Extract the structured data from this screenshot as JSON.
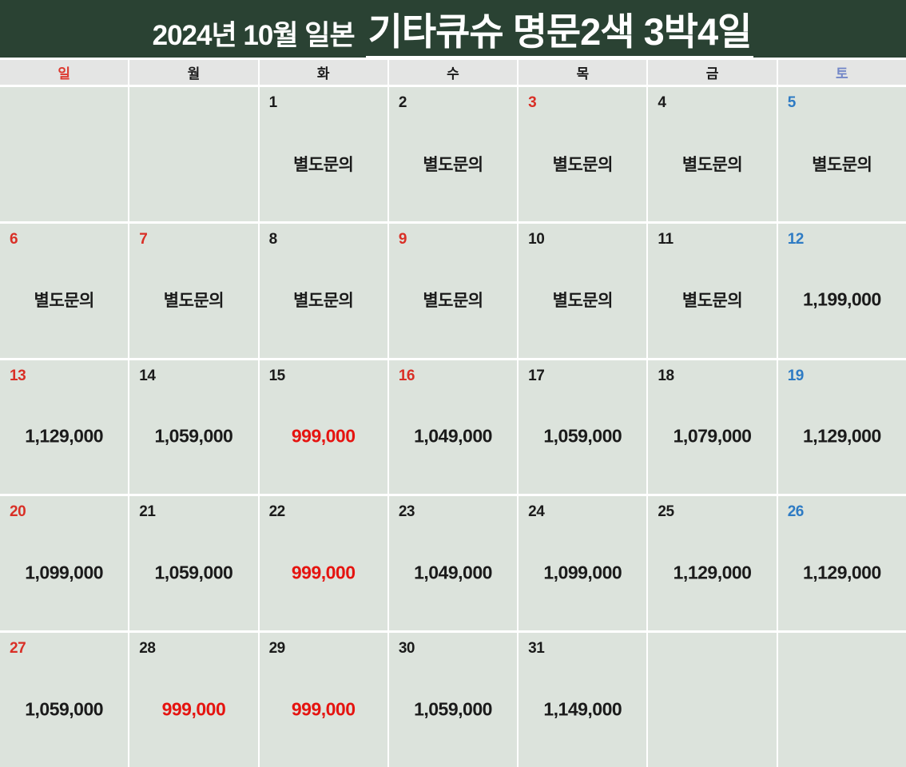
{
  "title": {
    "prefix": "2024년 10월 일본",
    "main": "기타큐슈 명문2색 3박4일"
  },
  "colors": {
    "banner_green": "#2a4233",
    "cell_background": "#dce3dc",
    "weekday_header_background": "#e4e5e4",
    "grid_line_white": "#ffffff",
    "day_red": "#d92f26",
    "day_blue": "#2e7bc4",
    "day_black": "#1b1b1b",
    "price_red": "#e51410",
    "price_black": "#1b1b1b",
    "sunday_header_red": "#dd382e",
    "saturday_header_blue": "#7488c8",
    "weekday_header_black": "#1b1b1b",
    "title_text": "#ffffff"
  },
  "weekdays": [
    {
      "label": "일",
      "color": "#dd382e"
    },
    {
      "label": "월",
      "color": "#1b1b1b"
    },
    {
      "label": "화",
      "color": "#1b1b1b"
    },
    {
      "label": "수",
      "color": "#1b1b1b"
    },
    {
      "label": "목",
      "color": "#1b1b1b"
    },
    {
      "label": "금",
      "color": "#1b1b1b"
    },
    {
      "label": "토",
      "color": "#7488c8"
    }
  ],
  "calendar": {
    "month": "2024-10",
    "inquiry_text": "별도문의",
    "cells": [
      {
        "day": "",
        "value": ""
      },
      {
        "day": "",
        "value": ""
      },
      {
        "day": "1",
        "day_color": "#1b1b1b",
        "type": "inquiry",
        "value": "별도문의",
        "value_color": "#1b1b1b"
      },
      {
        "day": "2",
        "day_color": "#1b1b1b",
        "type": "inquiry",
        "value": "별도문의",
        "value_color": "#1b1b1b"
      },
      {
        "day": "3",
        "day_color": "#d92f26",
        "type": "inquiry",
        "value": "별도문의",
        "value_color": "#1b1b1b"
      },
      {
        "day": "4",
        "day_color": "#1b1b1b",
        "type": "inquiry",
        "value": "별도문의",
        "value_color": "#1b1b1b"
      },
      {
        "day": "5",
        "day_color": "#2e7bc4",
        "type": "inquiry",
        "value": "별도문의",
        "value_color": "#1b1b1b"
      },
      {
        "day": "6",
        "day_color": "#d92f26",
        "type": "inquiry",
        "value": "별도문의",
        "value_color": "#1b1b1b"
      },
      {
        "day": "7",
        "day_color": "#d92f26",
        "type": "inquiry",
        "value": "별도문의",
        "value_color": "#1b1b1b"
      },
      {
        "day": "8",
        "day_color": "#1b1b1b",
        "type": "inquiry",
        "value": "별도문의",
        "value_color": "#1b1b1b"
      },
      {
        "day": "9",
        "day_color": "#d92f26",
        "type": "inquiry",
        "value": "별도문의",
        "value_color": "#1b1b1b"
      },
      {
        "day": "10",
        "day_color": "#1b1b1b",
        "type": "inquiry",
        "value": "별도문의",
        "value_color": "#1b1b1b"
      },
      {
        "day": "11",
        "day_color": "#1b1b1b",
        "type": "inquiry",
        "value": "별도문의",
        "value_color": "#1b1b1b"
      },
      {
        "day": "12",
        "day_color": "#2e7bc4",
        "type": "price",
        "value": "1,199,000",
        "value_color": "#1b1b1b"
      },
      {
        "day": "13",
        "day_color": "#d92f26",
        "type": "price",
        "value": "1,129,000",
        "value_color": "#1b1b1b"
      },
      {
        "day": "14",
        "day_color": "#1b1b1b",
        "type": "price",
        "value": "1,059,000",
        "value_color": "#1b1b1b"
      },
      {
        "day": "15",
        "day_color": "#1b1b1b",
        "type": "price",
        "value": "999,000",
        "value_color": "#e51410"
      },
      {
        "day": "16",
        "day_color": "#d92f26",
        "type": "price",
        "value": "1,049,000",
        "value_color": "#1b1b1b"
      },
      {
        "day": "17",
        "day_color": "#1b1b1b",
        "type": "price",
        "value": "1,059,000",
        "value_color": "#1b1b1b"
      },
      {
        "day": "18",
        "day_color": "#1b1b1b",
        "type": "price",
        "value": "1,079,000",
        "value_color": "#1b1b1b"
      },
      {
        "day": "19",
        "day_color": "#2e7bc4",
        "type": "price",
        "value": "1,129,000",
        "value_color": "#1b1b1b"
      },
      {
        "day": "20",
        "day_color": "#d92f26",
        "type": "price",
        "value": "1,099,000",
        "value_color": "#1b1b1b"
      },
      {
        "day": "21",
        "day_color": "#1b1b1b",
        "type": "price",
        "value": "1,059,000",
        "value_color": "#1b1b1b"
      },
      {
        "day": "22",
        "day_color": "#1b1b1b",
        "type": "price",
        "value": "999,000",
        "value_color": "#e51410"
      },
      {
        "day": "23",
        "day_color": "#1b1b1b",
        "type": "price",
        "value": "1,049,000",
        "value_color": "#1b1b1b"
      },
      {
        "day": "24",
        "day_color": "#1b1b1b",
        "type": "price",
        "value": "1,099,000",
        "value_color": "#1b1b1b"
      },
      {
        "day": "25",
        "day_color": "#1b1b1b",
        "type": "price",
        "value": "1,129,000",
        "value_color": "#1b1b1b"
      },
      {
        "day": "26",
        "day_color": "#2e7bc4",
        "type": "price",
        "value": "1,129,000",
        "value_color": "#1b1b1b"
      },
      {
        "day": "27",
        "day_color": "#d92f26",
        "type": "price",
        "value": "1,059,000",
        "value_color": "#1b1b1b"
      },
      {
        "day": "28",
        "day_color": "#1b1b1b",
        "type": "price",
        "value": "999,000",
        "value_color": "#e51410"
      },
      {
        "day": "29",
        "day_color": "#1b1b1b",
        "type": "price",
        "value": "999,000",
        "value_color": "#e51410"
      },
      {
        "day": "30",
        "day_color": "#1b1b1b",
        "type": "price",
        "value": "1,059,000",
        "value_color": "#1b1b1b"
      },
      {
        "day": "31",
        "day_color": "#1b1b1b",
        "type": "price",
        "value": "1,149,000",
        "value_color": "#1b1b1b"
      },
      {
        "day": "",
        "value": ""
      },
      {
        "day": "",
        "value": ""
      }
    ]
  }
}
